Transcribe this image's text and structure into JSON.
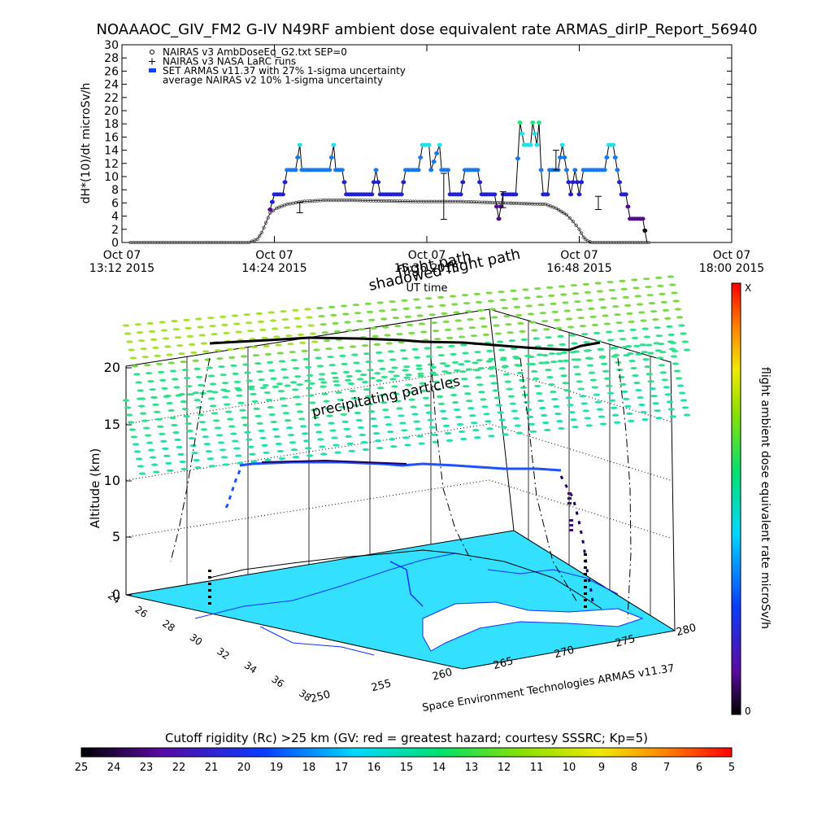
{
  "title": "NOAAAOC_GIV_FM2 G-IV    N49RF   ambient dose equivalent rate ARMAS_dirIP_Report_56940",
  "chart_data": [
    {
      "type": "scatter",
      "ylabel": "dH*(10)/dt microSv/h",
      "xlabel": "UT time",
      "ylim": [
        0,
        30
      ],
      "yticks": [
        0,
        2,
        4,
        6,
        8,
        10,
        12,
        14,
        16,
        18,
        20,
        22,
        24,
        26,
        28,
        30
      ],
      "xlim_minutes": [
        0,
        288
      ],
      "xticks": [
        {
          "minute": 0,
          "line1": "Oct 07",
          "line2": "13:12 2015"
        },
        {
          "minute": 72,
          "line1": "Oct 07",
          "line2": "14:24 2015"
        },
        {
          "minute": 144,
          "line1": "Oct 07",
          "line2": "15:36 2015"
        },
        {
          "minute": 216,
          "line1": "Oct 07",
          "line2": "16:48 2015"
        },
        {
          "minute": 288,
          "line1": "Oct 07",
          "line2": "18:00 2015"
        }
      ],
      "legend": [
        {
          "marker": "circle",
          "label": "NAIRAS v3 AmbDoseEq_G2.txt SEP=0"
        },
        {
          "marker": "plus",
          "label": "NAIRAS v3 NASA LaRC runs"
        },
        {
          "marker": "bar",
          "label": "SET ARMAS v11.37 with 27% 1-sigma uncertainty"
        },
        {
          "marker": "none",
          "label": "average NAIRAS v2 10% 1-sigma uncertainty"
        }
      ],
      "series": [
        {
          "name": "NAIRAS v3 AmbDoseEq_G2.txt SEP=0",
          "points": [
            [
              4,
              0
            ],
            [
              60,
              0
            ],
            [
              64,
              0.5
            ],
            [
              66,
              1.5
            ],
            [
              68,
              3
            ],
            [
              70,
              4.5
            ],
            [
              73,
              5.2
            ],
            [
              78,
              5.8
            ],
            [
              85,
              6.2
            ],
            [
              95,
              6.4
            ],
            [
              110,
              6.4
            ],
            [
              125,
              6.3
            ],
            [
              140,
              6.2
            ],
            [
              150,
              6.2
            ],
            [
              160,
              6.2
            ],
            [
              170,
              6.1
            ],
            [
              180,
              6.0
            ],
            [
              190,
              5.9
            ],
            [
              200,
              5.8
            ],
            [
              205,
              5.2
            ],
            [
              210,
              4.2
            ],
            [
              213,
              3.2
            ],
            [
              216,
              2.0
            ],
            [
              218,
              0.8
            ],
            [
              220,
              0.2
            ],
            [
              222,
              0
            ],
            [
              250,
              0
            ]
          ]
        },
        {
          "name": "SET ARMAS v11.37 with 27% 1-sigma uncertainty",
          "points": [
            [
              70,
              5
            ],
            [
              72,
              7.3
            ],
            [
              76,
              7.3
            ],
            [
              78,
              11
            ],
            [
              82,
              11
            ],
            [
              84,
              14.8
            ],
            [
              85,
              11
            ],
            [
              98,
              11
            ],
            [
              100,
              14.8
            ],
            [
              101,
              11
            ],
            [
              104,
              11
            ],
            [
              106,
              7.3
            ],
            [
              118,
              7.3
            ],
            [
              120,
              11
            ],
            [
              122,
              7.3
            ],
            [
              132,
              7.3
            ],
            [
              134,
              11
            ],
            [
              140,
              11
            ],
            [
              142,
              14.8
            ],
            [
              145,
              14.8
            ],
            [
              146,
              11
            ],
            [
              150,
              14.8
            ],
            [
              151,
              11
            ],
            [
              154,
              11
            ],
            [
              155,
              7.3
            ],
            [
              160,
              7.3
            ],
            [
              162,
              11
            ],
            [
              168,
              11
            ],
            [
              170,
              7.3
            ],
            [
              176,
              7.3
            ],
            [
              178,
              3.6
            ],
            [
              180,
              7.3
            ],
            [
              186,
              7.3
            ],
            [
              188,
              18.2
            ],
            [
              190,
              14.8
            ],
            [
              193,
              14.8
            ],
            [
              194,
              18.2
            ],
            [
              196,
              14.8
            ],
            [
              197,
              18.2
            ],
            [
              198,
              11
            ],
            [
              199,
              7.3
            ],
            [
              201,
              7.3
            ],
            [
              202,
              11
            ],
            [
              206,
              11
            ],
            [
              208,
              14.8
            ],
            [
              210,
              11
            ],
            [
              212,
              7.3
            ],
            [
              214,
              11
            ],
            [
              216,
              7.3
            ],
            [
              218,
              11
            ],
            [
              228,
              11
            ],
            [
              230,
              14.8
            ],
            [
              232,
              14.8
            ],
            [
              234,
              11
            ],
            [
              236,
              7.3
            ],
            [
              238,
              7.3
            ],
            [
              240,
              3.6
            ],
            [
              246,
              3.6
            ],
            [
              248,
              0
            ]
          ]
        }
      ],
      "errorbars": [
        {
          "x": 84,
          "y": 5.3,
          "err": 0.8
        },
        {
          "x": 152,
          "y": 7.0,
          "err": 3.5
        },
        {
          "x": 180,
          "y": 6.5,
          "err": 1.2
        },
        {
          "x": 205,
          "y": 12.5,
          "err": 1.5
        },
        {
          "x": 225,
          "y": 6.0,
          "err": 1.0
        }
      ]
    },
    {
      "type": "3d-map",
      "zlabel": "Altitude (km)",
      "zticks": [
        "0",
        "5",
        "10",
        "15",
        "20"
      ],
      "lat_ticks": [
        "24",
        "26",
        "28",
        "30",
        "32",
        "34",
        "36",
        "38"
      ],
      "lon_ticks": [
        "250",
        "255",
        "260",
        "265",
        "270",
        "275",
        "280"
      ],
      "annotations": [
        "flight path",
        "shadowed flight path",
        "precipitating particles"
      ],
      "credit": "Space Environment Technologies ARMAS v11.37",
      "colorbar_right": {
        "label": "flight ambient dose equivalent rate microSv/h",
        "top": "X",
        "bottom": "0"
      }
    },
    {
      "type": "colorbar",
      "title": "Cutoff rigidity (Rc) >25 km (GV: red = greatest hazard; courtesy SSSRC; Kp=5)",
      "ticks": [
        "25",
        "24",
        "23",
        "22",
        "21",
        "20",
        "19",
        "18",
        "17",
        "16",
        "15",
        "14",
        "13",
        "12",
        "11",
        "10",
        "9",
        "8",
        "7",
        "6",
        "5"
      ]
    }
  ]
}
